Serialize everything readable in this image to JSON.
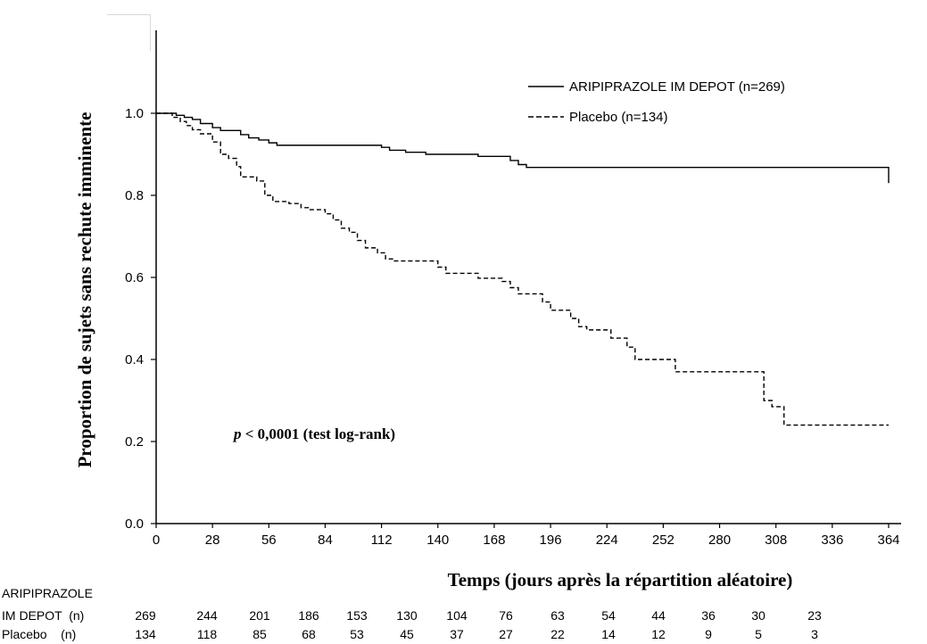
{
  "chart_data": {
    "type": "line",
    "ylabel": "Proportion de sujets sans rechute imminente",
    "xlabel": "Temps (jours après la répartition aléatoire)",
    "annotation_p": "p",
    "annotation_rest": " < 0,0001 (test log-rank)",
    "xlim": [
      0,
      364
    ],
    "ylim": [
      0,
      1.0
    ],
    "x_ticks": [
      0,
      28,
      56,
      84,
      112,
      140,
      168,
      196,
      224,
      252,
      280,
      308,
      336,
      364
    ],
    "y_ticks": [
      {
        "value": 0.0,
        "label": "0.0"
      },
      {
        "value": 0.2,
        "label": "0.2"
      },
      {
        "value": 0.4,
        "label": "0.4"
      },
      {
        "value": 0.6,
        "label": "0.6"
      },
      {
        "value": 0.8,
        "label": "0.8"
      },
      {
        "value": 1.0,
        "label": "1.0"
      }
    ],
    "legend_position": "top-right",
    "series": [
      {
        "name": "ARIPIPRAZOLE IM DEPOT (n=269)",
        "style": "solid",
        "color": "#000000",
        "steps": [
          [
            0,
            1.0
          ],
          [
            10,
            0.995
          ],
          [
            14,
            0.99
          ],
          [
            18,
            0.985
          ],
          [
            22,
            0.975
          ],
          [
            28,
            0.965
          ],
          [
            32,
            0.958
          ],
          [
            42,
            0.948
          ],
          [
            46,
            0.94
          ],
          [
            51,
            0.935
          ],
          [
            56,
            0.928
          ],
          [
            60,
            0.922
          ],
          [
            112,
            0.917
          ],
          [
            116,
            0.91
          ],
          [
            124,
            0.905
          ],
          [
            134,
            0.9
          ],
          [
            160,
            0.895
          ],
          [
            176,
            0.885
          ],
          [
            180,
            0.875
          ],
          [
            184,
            0.868
          ],
          [
            364,
            0.865
          ],
          [
            364,
            0.83
          ]
        ]
      },
      {
        "name": "Placebo (n=134)",
        "style": "dashed",
        "color": "#000000",
        "steps": [
          [
            0,
            1.0
          ],
          [
            8,
            0.99
          ],
          [
            12,
            0.98
          ],
          [
            15,
            0.97
          ],
          [
            18,
            0.96
          ],
          [
            22,
            0.95
          ],
          [
            28,
            0.93
          ],
          [
            32,
            0.9
          ],
          [
            36,
            0.89
          ],
          [
            40,
            0.87
          ],
          [
            42,
            0.845
          ],
          [
            50,
            0.835
          ],
          [
            54,
            0.8
          ],
          [
            58,
            0.785
          ],
          [
            66,
            0.78
          ],
          [
            72,
            0.77
          ],
          [
            76,
            0.765
          ],
          [
            84,
            0.755
          ],
          [
            88,
            0.74
          ],
          [
            92,
            0.72
          ],
          [
            96,
            0.71
          ],
          [
            100,
            0.69
          ],
          [
            104,
            0.672
          ],
          [
            110,
            0.66
          ],
          [
            114,
            0.645
          ],
          [
            118,
            0.64
          ],
          [
            140,
            0.625
          ],
          [
            144,
            0.61
          ],
          [
            160,
            0.598
          ],
          [
            172,
            0.59
          ],
          [
            176,
            0.575
          ],
          [
            180,
            0.56
          ],
          [
            192,
            0.54
          ],
          [
            196,
            0.52
          ],
          [
            206,
            0.5
          ],
          [
            210,
            0.48
          ],
          [
            214,
            0.472
          ],
          [
            226,
            0.452
          ],
          [
            234,
            0.43
          ],
          [
            238,
            0.4
          ],
          [
            258,
            0.37
          ],
          [
            302,
            0.3
          ],
          [
            306,
            0.285
          ],
          [
            312,
            0.24
          ],
          [
            364,
            0.24
          ]
        ]
      }
    ],
    "risk_table": {
      "row1_label_line1": "ARIPIPRAZOLE",
      "row1_label_line2": "IM DEPOT  (n)",
      "row2_label": "Placebo    (n)",
      "row1_values": [
        269,
        244,
        201,
        186,
        153,
        130,
        104,
        76,
        63,
        54,
        44,
        36,
        30,
        23
      ],
      "row2_values": [
        134,
        118,
        85,
        68,
        53,
        45,
        37,
        27,
        22,
        14,
        12,
        9,
        5,
        3
      ]
    }
  }
}
